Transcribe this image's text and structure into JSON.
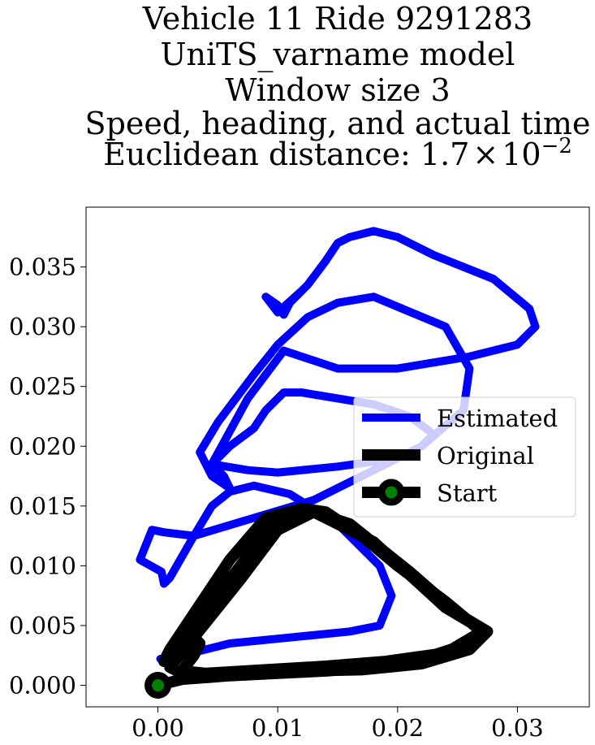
{
  "chart_data": {
    "type": "line",
    "title_lines": [
      "Vehicle 11 Ride 9291283",
      "UniTS_varname model",
      "Window size 3",
      "Speed, heading, and actual time"
    ],
    "title_distance_prefix": "Euclidean distance: 1.7",
    "title_distance_times": "×",
    "title_distance_base": "10",
    "title_distance_exponent": "−2",
    "xlim": [
      -0.006,
      0.036
    ],
    "ylim": [
      -0.0018,
      0.04
    ],
    "x_ticks": [
      0.0,
      0.01,
      0.02,
      0.03
    ],
    "x_tick_labels": [
      "0.00",
      "0.01",
      "0.02",
      "0.03"
    ],
    "y_ticks": [
      0.0,
      0.005,
      0.01,
      0.015,
      0.02,
      0.025,
      0.03,
      0.035
    ],
    "y_tick_labels": [
      "0.000",
      "0.005",
      "0.010",
      "0.015",
      "0.020",
      "0.025",
      "0.030",
      "0.035"
    ],
    "grid": false,
    "legend_position": "center-right",
    "series": [
      {
        "name": "Estimated",
        "color": "#0000ff",
        "points": [
          [
            0.0002,
            0.0022
          ],
          [
            0.002,
            0.0025
          ],
          [
            0.006,
            0.0035
          ],
          [
            0.011,
            0.004
          ],
          [
            0.016,
            0.0045
          ],
          [
            0.0185,
            0.005
          ],
          [
            0.0195,
            0.0075
          ],
          [
            0.0185,
            0.01
          ],
          [
            0.015,
            0.0135
          ],
          [
            0.011,
            0.016
          ],
          [
            0.008,
            0.0167
          ],
          [
            0.006,
            0.0162
          ],
          [
            0.0045,
            0.015
          ],
          [
            0.003,
            0.0125
          ],
          [
            0.001,
            0.009
          ],
          [
            0.0005,
            0.0085
          ],
          [
            0.0003,
            0.0095
          ],
          [
            -0.0015,
            0.0105
          ],
          [
            -0.0005,
            0.013
          ],
          [
            0.0005,
            0.0128
          ],
          [
            0.003,
            0.0125
          ],
          [
            0.008,
            0.014
          ],
          [
            0.013,
            0.0155
          ],
          [
            0.018,
            0.018
          ],
          [
            0.022,
            0.02
          ],
          [
            0.0255,
            0.023
          ],
          [
            0.026,
            0.0265
          ],
          [
            0.024,
            0.03
          ],
          [
            0.018,
            0.0325
          ],
          [
            0.015,
            0.032
          ],
          [
            0.0125,
            0.0308
          ],
          [
            0.01,
            0.0285
          ],
          [
            0.008,
            0.026
          ],
          [
            0.005,
            0.022
          ],
          [
            0.0035,
            0.0195
          ],
          [
            0.0045,
            0.0175
          ],
          [
            0.006,
            0.0165
          ],
          [
            0.0055,
            0.0175
          ],
          [
            0.005,
            0.018
          ],
          [
            0.0045,
            0.0185
          ],
          [
            0.0075,
            0.018
          ],
          [
            0.01,
            0.0178
          ],
          [
            0.015,
            0.0183
          ],
          [
            0.02,
            0.019
          ],
          [
            0.022,
            0.02
          ],
          [
            0.023,
            0.021
          ],
          [
            0.021,
            0.0225
          ],
          [
            0.018,
            0.0235
          ],
          [
            0.015,
            0.024
          ],
          [
            0.012,
            0.0245
          ],
          [
            0.0105,
            0.0245
          ],
          [
            0.009,
            0.023
          ],
          [
            0.008,
            0.0215
          ],
          [
            0.006,
            0.02
          ],
          [
            0.0045,
            0.0185
          ],
          [
            0.0075,
            0.024
          ],
          [
            0.0105,
            0.028
          ],
          [
            0.015,
            0.0265
          ],
          [
            0.02,
            0.0265
          ],
          [
            0.026,
            0.0275
          ],
          [
            0.03,
            0.0285
          ],
          [
            0.0315,
            0.03
          ],
          [
            0.031,
            0.0315
          ],
          [
            0.028,
            0.034
          ],
          [
            0.023,
            0.036
          ],
          [
            0.02,
            0.0375
          ],
          [
            0.018,
            0.038
          ],
          [
            0.016,
            0.0375
          ],
          [
            0.015,
            0.037
          ],
          [
            0.014,
            0.0355
          ],
          [
            0.0125,
            0.0335
          ],
          [
            0.011,
            0.032
          ],
          [
            0.0105,
            0.031
          ],
          [
            0.01,
            0.0318
          ],
          [
            0.009,
            0.0325
          ],
          [
            0.01,
            0.0312
          ],
          [
            0.012,
            0.033
          ]
        ]
      },
      {
        "name": "Original",
        "color": "#000000",
        "points": [
          [
            0.0,
            0.0
          ],
          [
            0.002,
            0.0005
          ],
          [
            0.006,
            0.0008
          ],
          [
            0.01,
            0.001
          ],
          [
            0.014,
            0.0012
          ],
          [
            0.018,
            0.0015
          ],
          [
            0.022,
            0.0022
          ],
          [
            0.026,
            0.0035
          ],
          [
            0.027,
            0.0045
          ],
          [
            0.024,
            0.007
          ],
          [
            0.02,
            0.01
          ],
          [
            0.017,
            0.0125
          ],
          [
            0.014,
            0.0145
          ],
          [
            0.012,
            0.0148
          ],
          [
            0.01,
            0.014
          ],
          [
            0.008,
            0.0115
          ],
          [
            0.005,
            0.0075
          ],
          [
            0.002,
            0.0035
          ],
          [
            0.0005,
            0.002
          ],
          [
            0.001,
            0.003
          ],
          [
            0.003,
            0.006
          ],
          [
            0.006,
            0.0105
          ],
          [
            0.009,
            0.014
          ],
          [
            0.012,
            0.0148
          ],
          [
            0.016,
            0.0135
          ],
          [
            0.021,
            0.0095
          ],
          [
            0.025,
            0.006
          ],
          [
            0.0275,
            0.0045
          ],
          [
            0.026,
            0.003
          ],
          [
            0.022,
            0.0018
          ],
          [
            0.017,
            0.0013
          ],
          [
            0.012,
            0.0012
          ],
          [
            0.008,
            0.001
          ],
          [
            0.004,
            0.0008
          ],
          [
            0.002,
            0.001
          ],
          [
            0.001,
            0.0015
          ],
          [
            0.003,
            0.004
          ],
          [
            0.007,
            0.009
          ],
          [
            0.01,
            0.013
          ],
          [
            0.013,
            0.0145
          ],
          [
            0.018,
            0.012
          ],
          [
            0.024,
            0.0065
          ],
          [
            0.0272,
            0.0046
          ],
          [
            0.024,
            0.0027
          ],
          [
            0.019,
            0.002
          ],
          [
            0.014,
            0.0016
          ],
          [
            0.009,
            0.0013
          ],
          [
            0.004,
            0.001
          ],
          [
            0.002,
            0.0012
          ],
          [
            0.003,
            0.0025
          ],
          [
            0.0035,
            0.0035
          ],
          [
            0.003,
            0.004
          ]
        ]
      }
    ],
    "start_point": {
      "name": "Start",
      "x": 0.0,
      "y": 0.0,
      "edge_color": "#000000",
      "face_color": "#008000"
    }
  }
}
